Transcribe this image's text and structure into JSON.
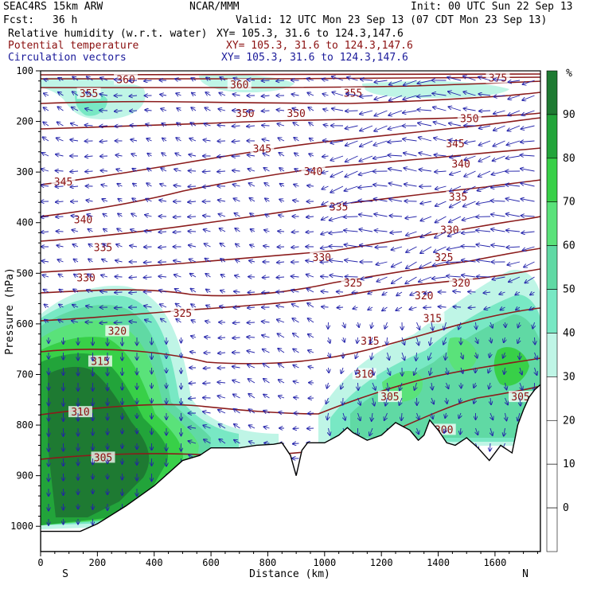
{
  "header": {
    "model": "SEAC4RS 15km ARW",
    "org": "NCAR/MMM",
    "init": "Init: 00 UTC Sun 22 Sep 13",
    "fcst_label": "Fcst:",
    "fcst_value": "36 h",
    "valid": "Valid: 12 UTC Mon 23 Sep 13 (07 CDT Mon 23 Sep 13)",
    "fields": [
      {
        "name": "Relative humidity (w.r.t. water)",
        "xy": "XY= 105.3, 31.6 to 124.3,147.6",
        "color": "#000000"
      },
      {
        "name": "Potential temperature",
        "xy": "XY= 105.3, 31.6 to 124.3,147.6",
        "color": "#8b1010"
      },
      {
        "name": "Circulation vectors",
        "xy": "XY= 105.3, 31.6 to 124.3,147.6",
        "color": "#1a1a9a"
      }
    ]
  },
  "chart_data": {
    "type": "contour_cross_section",
    "xlabel": "Distance (km)",
    "ylabel": "Pressure (hPa)",
    "xlim": [
      0,
      1760
    ],
    "ylim": [
      1050,
      100
    ],
    "x_ticks": [
      0,
      200,
      400,
      600,
      800,
      1000,
      1200,
      1400,
      1600
    ],
    "y_ticks": [
      100,
      200,
      300,
      400,
      500,
      600,
      700,
      800,
      900,
      1000
    ],
    "endpoints": {
      "left": "S",
      "right": "N"
    },
    "colorbar": {
      "unit": "%",
      "labels": [
        90,
        80,
        70,
        60,
        50,
        40,
        30,
        20,
        10,
        0
      ],
      "colors": [
        "#1e7a32",
        "#22a43a",
        "#38d048",
        "#5ae27a",
        "#60d9a4",
        "#78e8c4",
        "#bff5e6"
      ]
    },
    "theta_labels": [
      {
        "v": "360",
        "x": 300,
        "p": 118
      },
      {
        "v": "360",
        "x": 700,
        "p": 128
      },
      {
        "v": "375",
        "x": 1610,
        "p": 115
      },
      {
        "v": "355",
        "x": 170,
        "p": 146
      },
      {
        "v": "355",
        "x": 1100,
        "p": 145
      },
      {
        "v": "350",
        "x": 720,
        "p": 185
      },
      {
        "v": "350",
        "x": 900,
        "p": 185
      },
      {
        "v": "350",
        "x": 1510,
        "p": 195
      },
      {
        "v": "345",
        "x": 780,
        "p": 255
      },
      {
        "v": "345",
        "x": 80,
        "p": 320
      },
      {
        "v": "345",
        "x": 1460,
        "p": 245
      },
      {
        "v": "340",
        "x": 960,
        "p": 300
      },
      {
        "v": "340",
        "x": 150,
        "p": 395
      },
      {
        "v": "340",
        "x": 1480,
        "p": 285
      },
      {
        "v": "335",
        "x": 1050,
        "p": 370
      },
      {
        "v": "335",
        "x": 220,
        "p": 450
      },
      {
        "v": "335",
        "x": 1470,
        "p": 350
      },
      {
        "v": "330",
        "x": 990,
        "p": 470
      },
      {
        "v": "330",
        "x": 160,
        "p": 510
      },
      {
        "v": "330",
        "x": 1440,
        "p": 415
      },
      {
        "v": "325",
        "x": 1100,
        "p": 520
      },
      {
        "v": "325",
        "x": 500,
        "p": 580
      },
      {
        "v": "325",
        "x": 1420,
        "p": 470
      },
      {
        "v": "320",
        "x": 1350,
        "p": 545
      },
      {
        "v": "320",
        "x": 1480,
        "p": 520
      },
      {
        "v": "320",
        "x": 270,
        "p": 615
      },
      {
        "v": "315",
        "x": 1380,
        "p": 590
      },
      {
        "v": "315",
        "x": 1160,
        "p": 635
      },
      {
        "v": "315",
        "x": 210,
        "p": 675
      },
      {
        "v": "310",
        "x": 1140,
        "p": 700
      },
      {
        "v": "310",
        "x": 140,
        "p": 775
      },
      {
        "v": "305",
        "x": 1230,
        "p": 745
      },
      {
        "v": "305",
        "x": 1690,
        "p": 745
      },
      {
        "v": "305",
        "x": 220,
        "p": 865
      },
      {
        "v": "300",
        "x": 1420,
        "p": 810
      }
    ],
    "terrain_pressure": [
      [
        0,
        1010
      ],
      [
        60,
        1010
      ],
      [
        140,
        1010
      ],
      [
        200,
        995
      ],
      [
        300,
        960
      ],
      [
        400,
        920
      ],
      [
        500,
        870
      ],
      [
        560,
        860
      ],
      [
        600,
        845
      ],
      [
        640,
        845
      ],
      [
        700,
        845
      ],
      [
        760,
        840
      ],
      [
        820,
        838
      ],
      [
        850,
        835
      ],
      [
        880,
        860
      ],
      [
        900,
        900
      ],
      [
        920,
        850
      ],
      [
        940,
        835
      ],
      [
        1000,
        835
      ],
      [
        1050,
        820
      ],
      [
        1080,
        805
      ],
      [
        1100,
        815
      ],
      [
        1150,
        830
      ],
      [
        1200,
        820
      ],
      [
        1250,
        795
      ],
      [
        1300,
        810
      ],
      [
        1330,
        830
      ],
      [
        1350,
        820
      ],
      [
        1370,
        790
      ],
      [
        1400,
        810
      ],
      [
        1430,
        835
      ],
      [
        1460,
        840
      ],
      [
        1500,
        825
      ],
      [
        1540,
        845
      ],
      [
        1580,
        870
      ],
      [
        1620,
        840
      ],
      [
        1660,
        855
      ],
      [
        1680,
        800
      ],
      [
        1700,
        770
      ],
      [
        1720,
        745
      ],
      [
        1740,
        730
      ],
      [
        1760,
        720
      ]
    ]
  }
}
